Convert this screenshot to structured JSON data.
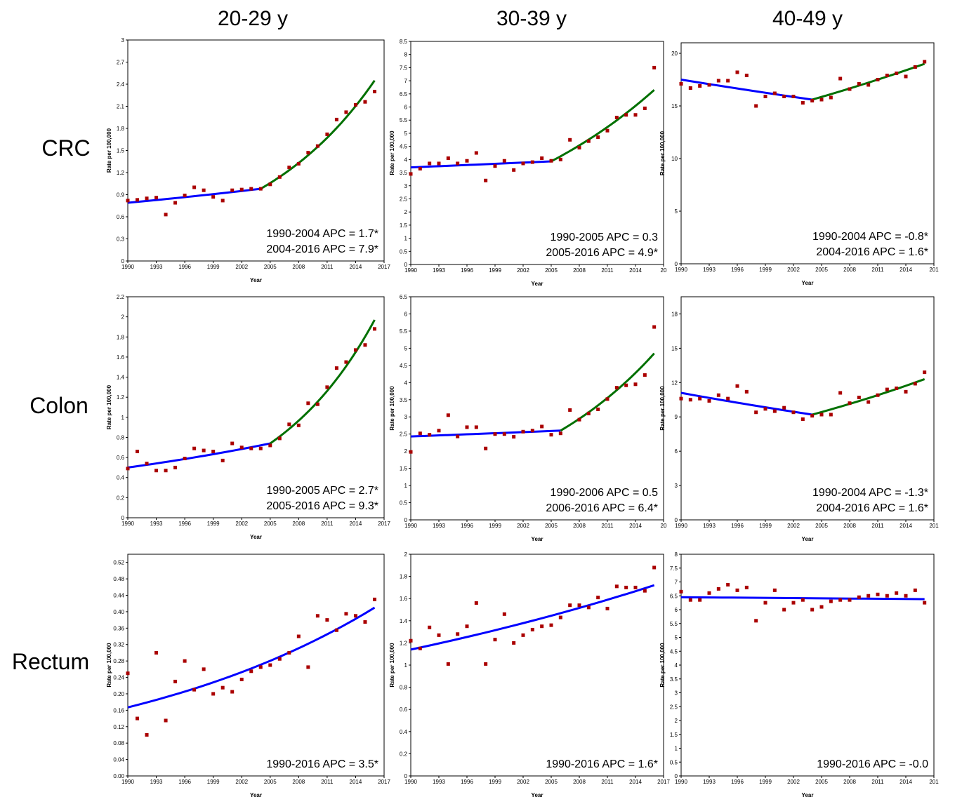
{
  "column_titles": [
    "20-29 y",
    "30-39 y",
    "40-49 y"
  ],
  "row_labels": [
    "CRC",
    "Colon",
    "Rectum"
  ],
  "colors": {
    "fit_line_1": "#0000ff",
    "fit_line_2": "#007000",
    "observed_point": "#aa0000"
  },
  "chart_data": [
    {
      "type": "scatter",
      "site": "CRC",
      "age": "20-29 y",
      "xlabel": "Year",
      "ylabel": "Rate per 100,000",
      "xlim": [
        1990,
        2017
      ],
      "ylim": [
        0,
        3
      ],
      "xticks": [
        "1990",
        "1993",
        "1996",
        "1999",
        "2002",
        "2005",
        "2008",
        "2011",
        "2014",
        "2017"
      ],
      "yticks": [
        "0",
        "0.3",
        "0.6",
        "0.9",
        "1.2",
        "1.5",
        "1.8",
        "2.1",
        "2.4",
        "2.7",
        "3"
      ],
      "x": [
        1990,
        1991,
        1992,
        1993,
        1994,
        1995,
        1996,
        1997,
        1998,
        1999,
        2000,
        2001,
        2002,
        2003,
        2004,
        2005,
        2006,
        2007,
        2008,
        2009,
        2010,
        2011,
        2012,
        2013,
        2014,
        2015,
        2016
      ],
      "y": [
        0.82,
        0.83,
        0.85,
        0.86,
        0.63,
        0.79,
        0.89,
        1.0,
        0.96,
        0.87,
        0.82,
        0.96,
        0.97,
        0.98,
        0.98,
        1.04,
        1.14,
        1.27,
        1.32,
        1.47,
        1.56,
        1.72,
        1.92,
        2.02,
        2.12,
        2.16,
        2.3
      ],
      "segments": [
        {
          "start": 1990,
          "end": 2004,
          "y_start": 0.79,
          "y_end": 0.98,
          "color": "#0000ff"
        },
        {
          "start": 2004,
          "end": 2016,
          "y_start": 0.98,
          "y_end": 2.45,
          "color": "#007000"
        }
      ],
      "annotations": [
        "1990-2004 APC = 1.7*",
        "2004-2016 APC = 7.9*"
      ]
    },
    {
      "type": "scatter",
      "site": "CRC",
      "age": "30-39 y",
      "xlabel": "Year",
      "ylabel": "Rate per 100,000",
      "xlim": [
        1990,
        2017
      ],
      "ylim": [
        0,
        8.5
      ],
      "xticks": [
        "1990",
        "1993",
        "1996",
        "1999",
        "2002",
        "2005",
        "2008",
        "2011",
        "2014",
        "20"
      ],
      "yticks": [
        "0",
        "0.5",
        "1",
        "1.5",
        "2",
        "2.5",
        "3",
        "3.5",
        "4",
        "4.5",
        "5",
        "5.5",
        "6",
        "6.5",
        "7",
        "7.5",
        "8",
        "8.5"
      ],
      "x": [
        1990,
        1991,
        1992,
        1993,
        1994,
        1995,
        1996,
        1997,
        1998,
        1999,
        2000,
        2001,
        2002,
        2003,
        2004,
        2005,
        2006,
        2007,
        2008,
        2009,
        2010,
        2011,
        2012,
        2013,
        2014,
        2015,
        2016
      ],
      "y": [
        3.45,
        3.65,
        3.85,
        3.85,
        4.05,
        3.85,
        3.95,
        4.25,
        3.2,
        3.75,
        3.95,
        3.6,
        3.85,
        3.9,
        4.05,
        3.95,
        4.0,
        4.75,
        4.45,
        4.7,
        4.85,
        5.1,
        5.6,
        5.7,
        5.7,
        5.95,
        7.5
      ],
      "segments": [
        {
          "start": 1990,
          "end": 2005,
          "y_start": 3.7,
          "y_end": 3.93,
          "color": "#0000ff"
        },
        {
          "start": 2005,
          "end": 2016,
          "y_start": 3.93,
          "y_end": 6.65,
          "color": "#007000"
        }
      ],
      "annotations": [
        "1990-2005 APC = 0.3",
        "2005-2016 APC = 4.9*"
      ]
    },
    {
      "type": "scatter",
      "site": "CRC",
      "age": "40-49 y",
      "xlabel": "Year",
      "ylabel": "Rate per 100,000",
      "xlim": [
        1990,
        2017
      ],
      "ylim": [
        0,
        21
      ],
      "xticks": [
        "1990",
        "1993",
        "1996",
        "1999",
        "2002",
        "2005",
        "2008",
        "2011",
        "2014",
        "201"
      ],
      "yticks": [
        "0",
        "5",
        "10",
        "15",
        "20"
      ],
      "x": [
        1990,
        1991,
        1992,
        1993,
        1994,
        1995,
        1996,
        1997,
        1998,
        1999,
        2000,
        2001,
        2002,
        2003,
        2004,
        2005,
        2006,
        2007,
        2008,
        2009,
        2010,
        2011,
        2012,
        2013,
        2014,
        2015,
        2016
      ],
      "y": [
        17.1,
        16.7,
        16.9,
        17.0,
        17.4,
        17.4,
        18.2,
        17.9,
        15.0,
        15.9,
        16.2,
        15.9,
        15.9,
        15.3,
        15.5,
        15.6,
        15.8,
        17.6,
        16.6,
        17.1,
        17.0,
        17.5,
        17.9,
        18.1,
        17.8,
        18.7,
        19.2
      ],
      "segments": [
        {
          "start": 1990,
          "end": 2004,
          "y_start": 17.5,
          "y_end": 15.6,
          "color": "#0000ff"
        },
        {
          "start": 2004,
          "end": 2016,
          "y_start": 15.6,
          "y_end": 19.0,
          "color": "#007000"
        }
      ],
      "annotations": [
        "1990-2004 APC = -0.8*",
        "2004-2016 APC = 1.6*"
      ]
    },
    {
      "type": "scatter",
      "site": "Colon",
      "age": "20-29 y",
      "xlabel": "Year",
      "ylabel": "Rate per 100,000",
      "xlim": [
        1990,
        2017
      ],
      "ylim": [
        0,
        2.2
      ],
      "xticks": [
        "1990",
        "1993",
        "1996",
        "1999",
        "2002",
        "2005",
        "2008",
        "2011",
        "2014",
        "2017"
      ],
      "yticks": [
        "0",
        "0.2",
        "0.4",
        "0.6",
        "0.8",
        "1",
        "1.2",
        "1.4",
        "1.6",
        "1.8",
        "2",
        "2.2"
      ],
      "x": [
        1990,
        1991,
        1992,
        1993,
        1994,
        1995,
        1996,
        1997,
        1998,
        1999,
        2000,
        2001,
        2002,
        2003,
        2004,
        2005,
        2006,
        2007,
        2008,
        2009,
        2010,
        2011,
        2012,
        2013,
        2014,
        2015,
        2016
      ],
      "y": [
        0.49,
        0.66,
        0.54,
        0.47,
        0.47,
        0.5,
        0.59,
        0.69,
        0.67,
        0.66,
        0.57,
        0.74,
        0.7,
        0.69,
        0.69,
        0.72,
        0.79,
        0.93,
        0.92,
        1.14,
        1.13,
        1.3,
        1.49,
        1.55,
        1.67,
        1.72,
        1.88
      ],
      "segments": [
        {
          "start": 1990,
          "end": 2005,
          "y_start": 0.5,
          "y_end": 0.74,
          "color": "#0000ff"
        },
        {
          "start": 2005,
          "end": 2016,
          "y_start": 0.74,
          "y_end": 1.97,
          "color": "#007000"
        }
      ],
      "annotations": [
        "1990-2005 APC = 2.7*",
        "2005-2016 APC = 9.3*"
      ]
    },
    {
      "type": "scatter",
      "site": "Colon",
      "age": "30-39 y",
      "xlabel": "Year",
      "ylabel": "Rate per 100,000",
      "xlim": [
        1990,
        2017
      ],
      "ylim": [
        0,
        6.5
      ],
      "xticks": [
        "1990",
        "1993",
        "1996",
        "1999",
        "2002",
        "2005",
        "2008",
        "2011",
        "2014",
        "20"
      ],
      "yticks": [
        "0",
        "0.5",
        "1",
        "1.5",
        "2",
        "2.5",
        "3",
        "3.5",
        "4",
        "4.5",
        "5",
        "5.5",
        "6",
        "6.5"
      ],
      "x": [
        1990,
        1991,
        1992,
        1993,
        1994,
        1995,
        1996,
        1997,
        1998,
        1999,
        2000,
        2001,
        2002,
        2003,
        2004,
        2005,
        2006,
        2007,
        2008,
        2009,
        2010,
        2011,
        2012,
        2013,
        2014,
        2015,
        2016
      ],
      "y": [
        1.98,
        2.52,
        2.48,
        2.6,
        3.05,
        2.43,
        2.7,
        2.7,
        2.08,
        2.5,
        2.5,
        2.42,
        2.57,
        2.6,
        2.72,
        2.48,
        2.52,
        3.2,
        2.92,
        3.1,
        3.22,
        3.52,
        3.85,
        3.92,
        3.95,
        4.22,
        5.62
      ],
      "segments": [
        {
          "start": 1990,
          "end": 2006,
          "y_start": 2.43,
          "y_end": 2.6,
          "color": "#0000ff"
        },
        {
          "start": 2006,
          "end": 2016,
          "y_start": 2.6,
          "y_end": 4.85,
          "color": "#007000"
        }
      ],
      "annotations": [
        "1990-2006 APC = 0.5",
        "2006-2016 APC = 6.4*"
      ]
    },
    {
      "type": "scatter",
      "site": "Colon",
      "age": "40-49 y",
      "xlabel": "Year",
      "ylabel": "Rate per 100,000",
      "xlim": [
        1990,
        2017
      ],
      "ylim": [
        0,
        19.5
      ],
      "xticks": [
        "1990",
        "1993",
        "1996",
        "1999",
        "2002",
        "2005",
        "2008",
        "2011",
        "2014",
        "201"
      ],
      "yticks": [
        "0",
        "3",
        "6",
        "9",
        "12",
        "15",
        "18"
      ],
      "x": [
        1990,
        1991,
        1992,
        1993,
        1994,
        1995,
        1996,
        1997,
        1998,
        1999,
        2000,
        2001,
        2002,
        2003,
        2004,
        2005,
        2006,
        2007,
        2008,
        2009,
        2010,
        2011,
        2012,
        2013,
        2014,
        2015,
        2016
      ],
      "y": [
        10.6,
        10.5,
        10.6,
        10.4,
        10.9,
        10.6,
        11.7,
        11.2,
        9.4,
        9.7,
        9.5,
        9.8,
        9.4,
        8.8,
        9.1,
        9.2,
        9.2,
        11.1,
        10.2,
        10.7,
        10.3,
        10.9,
        11.4,
        11.5,
        11.2,
        11.9,
        12.9
      ],
      "segments": [
        {
          "start": 1990,
          "end": 2004,
          "y_start": 11.1,
          "y_end": 9.2,
          "color": "#0000ff"
        },
        {
          "start": 2004,
          "end": 2016,
          "y_start": 9.2,
          "y_end": 12.3,
          "color": "#007000"
        }
      ],
      "annotations": [
        "1990-2004 APC = -1.3*",
        "2004-2016 APC = 1.6*"
      ]
    },
    {
      "type": "scatter",
      "site": "Rectum",
      "age": "20-29 y",
      "xlabel": "Year",
      "ylabel": "Rate per 100,000",
      "xlim": [
        1990,
        2017
      ],
      "ylim": [
        0,
        0.54
      ],
      "xticks": [
        "1990",
        "1993",
        "1996",
        "1999",
        "2002",
        "2005",
        "2008",
        "2011",
        "2014",
        "2017"
      ],
      "yticks": [
        "0.00",
        "0.04",
        "0.08",
        "0.12",
        "0.16",
        "0.20",
        "0.24",
        "0.28",
        "0.32",
        "0.36",
        "0.40",
        "0.44",
        "0.48",
        "0.52"
      ],
      "x": [
        1990,
        1991,
        1992,
        1993,
        1994,
        1995,
        1996,
        1997,
        1998,
        1999,
        2000,
        2001,
        2002,
        2003,
        2004,
        2005,
        2006,
        2007,
        2008,
        2009,
        2010,
        2011,
        2012,
        2013,
        2014,
        2015,
        2016
      ],
      "y": [
        0.25,
        0.14,
        0.1,
        0.3,
        0.135,
        0.23,
        0.28,
        0.21,
        0.26,
        0.2,
        0.215,
        0.205,
        0.235,
        0.255,
        0.265,
        0.27,
        0.285,
        0.3,
        0.34,
        0.265,
        0.39,
        0.38,
        0.355,
        0.395,
        0.39,
        0.375,
        0.43
      ],
      "segments": [
        {
          "start": 1990,
          "end": 2016,
          "y_start": 0.167,
          "y_end": 0.41,
          "color": "#0000ff"
        }
      ],
      "annotations": [
        "1990-2016 APC = 3.5*"
      ]
    },
    {
      "type": "scatter",
      "site": "Rectum",
      "age": "30-39 y",
      "xlabel": "Year",
      "ylabel": "Rate per 100,000",
      "xlim": [
        1990,
        2017
      ],
      "ylim": [
        0,
        2
      ],
      "xticks": [
        "1990",
        "1993",
        "1996",
        "1999",
        "2002",
        "2005",
        "2008",
        "2011",
        "2014",
        "2017"
      ],
      "yticks": [
        "0",
        "0.2",
        "0.4",
        "0.6",
        "0.8",
        "1",
        "1.2",
        "1.4",
        "1.6",
        "1.8",
        "2"
      ],
      "x": [
        1990,
        1991,
        1992,
        1993,
        1994,
        1995,
        1996,
        1997,
        1998,
        1999,
        2000,
        2001,
        2002,
        2003,
        2004,
        2005,
        2006,
        2007,
        2008,
        2009,
        2010,
        2011,
        2012,
        2013,
        2014,
        2015,
        2016
      ],
      "y": [
        1.22,
        1.15,
        1.34,
        1.27,
        1.01,
        1.28,
        1.35,
        1.56,
        1.01,
        1.23,
        1.46,
        1.2,
        1.27,
        1.32,
        1.35,
        1.36,
        1.43,
        1.54,
        1.54,
        1.52,
        1.61,
        1.51,
        1.71,
        1.7,
        1.7,
        1.67,
        1.88
      ],
      "segments": [
        {
          "start": 1990,
          "end": 2016,
          "y_start": 1.14,
          "y_end": 1.72,
          "color": "#0000ff"
        }
      ],
      "annotations": [
        "1990-2016 APC = 1.6*"
      ]
    },
    {
      "type": "scatter",
      "site": "Rectum",
      "age": "40-49 y",
      "xlabel": "Year",
      "ylabel": "Rate per 100,000",
      "xlim": [
        1990,
        2017
      ],
      "ylim": [
        0,
        8
      ],
      "xticks": [
        "1990",
        "1993",
        "1996",
        "1999",
        "2002",
        "2005",
        "2008",
        "2011",
        "2014",
        "201"
      ],
      "yticks": [
        "0",
        "0.5",
        "1",
        "1.5",
        "2",
        "2.5",
        "3",
        "3.5",
        "4",
        "4.5",
        "5",
        "5.5",
        "6",
        "6.5",
        "7",
        "7.5",
        "8"
      ],
      "x": [
        1990,
        1991,
        1992,
        1993,
        1994,
        1995,
        1996,
        1997,
        1998,
        1999,
        2000,
        2001,
        2002,
        2003,
        2004,
        2005,
        2006,
        2007,
        2008,
        2009,
        2010,
        2011,
        2012,
        2013,
        2014,
        2015,
        2016
      ],
      "y": [
        6.65,
        6.35,
        6.35,
        6.6,
        6.75,
        6.9,
        6.7,
        6.8,
        5.6,
        6.25,
        6.7,
        6.0,
        6.25,
        6.35,
        6.0,
        6.1,
        6.3,
        6.35,
        6.35,
        6.45,
        6.5,
        6.55,
        6.5,
        6.6,
        6.5,
        6.7,
        6.25
      ],
      "segments": [
        {
          "start": 1990,
          "end": 2016,
          "y_start": 6.45,
          "y_end": 6.38,
          "color": "#0000ff"
        }
      ],
      "annotations": [
        "1990-2016 APC = -0.0"
      ]
    }
  ]
}
